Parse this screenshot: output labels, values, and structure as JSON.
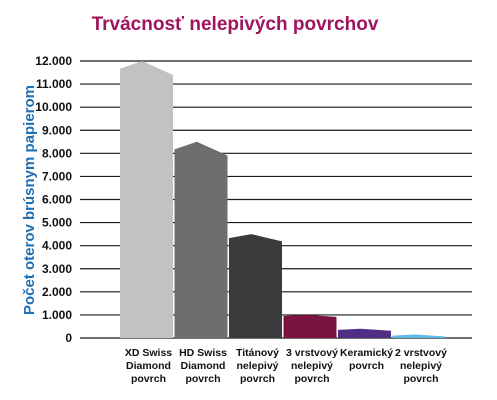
{
  "chart_data": {
    "type": "bar",
    "title": "Trvácnosť nelepivých povrchov",
    "xlabel": "",
    "ylabel": "Počet oterov brúsnym papierom",
    "ylim": [
      0,
      12000
    ],
    "yticks": [
      "0",
      "1.000",
      "2.000",
      "3.000",
      "4.000",
      "5.000",
      "6.000",
      "7.000",
      "8.000",
      "9.000",
      "10.000",
      "11.000",
      "12.000"
    ],
    "grid": true,
    "categories": [
      [
        "XD Swiss",
        "Diamond",
        "povrch"
      ],
      [
        "HD Swiss",
        "Diamond",
        "povrch"
      ],
      [
        "Titánový",
        "nelepivý",
        "povrch"
      ],
      [
        "3 vrstvový",
        "nelepivý",
        "povrch"
      ],
      [
        "Keramický",
        "povrch"
      ],
      [
        "2 vrstvový",
        "nelepivý",
        "povrch"
      ]
    ],
    "values": [
      12000,
      8500,
      4500,
      1000,
      400,
      150
    ],
    "colors": [
      "#c2c2c4",
      "#6e6e70",
      "#3b3b3d",
      "#7a1340",
      "#4f2f86",
      "#5fb8e6"
    ],
    "title_color": "#a0145e",
    "ylabel_color": "#1f6fb5"
  }
}
